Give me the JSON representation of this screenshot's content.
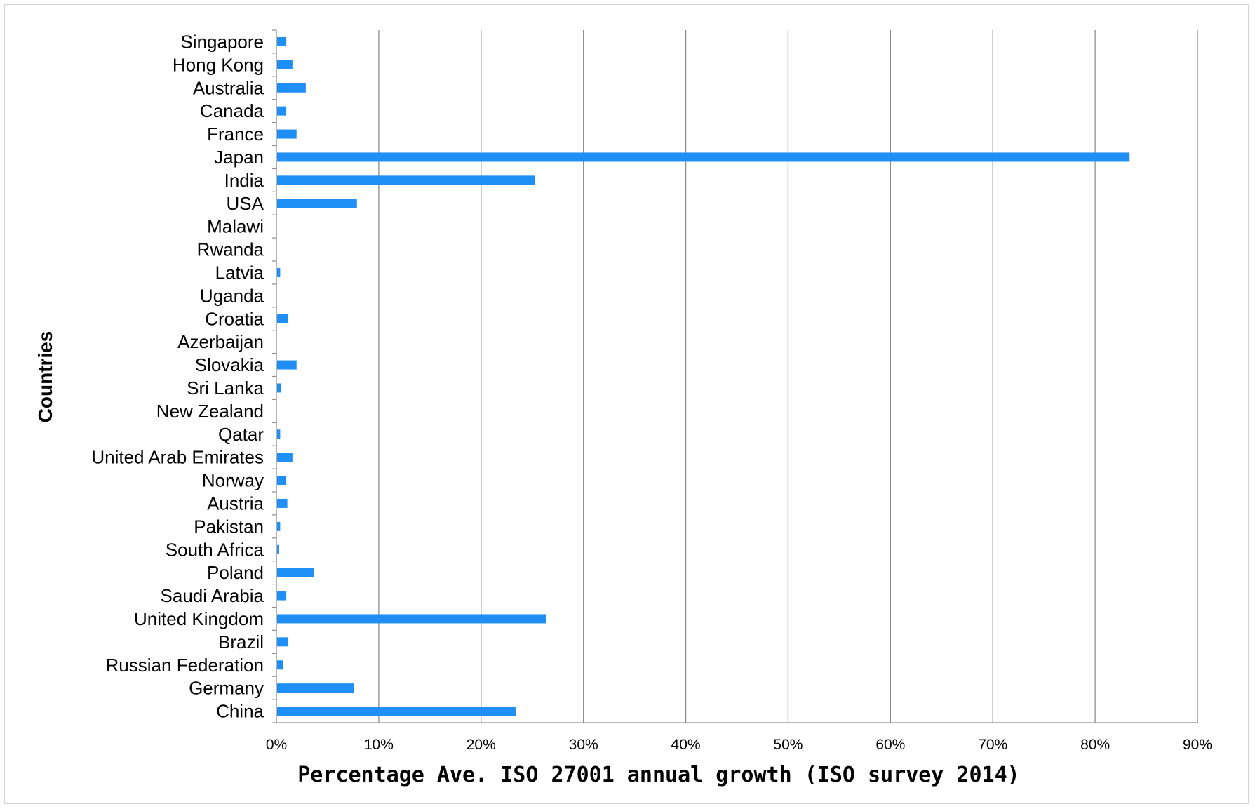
{
  "chart_data": {
    "type": "bar",
    "orientation": "horizontal",
    "xlabel": "Percentage Ave. ISO 27001 annual growth (ISO survey 2014)",
    "ylabel": "Countries",
    "xlim": [
      0,
      0.9
    ],
    "x_ticks": [
      0,
      0.1,
      0.2,
      0.3,
      0.4,
      0.5,
      0.6,
      0.7,
      0.8,
      0.9
    ],
    "x_tick_labels": [
      "0%",
      "10%",
      "20%",
      "30%",
      "40%",
      "50%",
      "60%",
      "70%",
      "80%",
      "90%"
    ],
    "grid": "vertical",
    "bar_color": "#1f8ef5",
    "categories": [
      "Singapore",
      "Hong Kong",
      "Australia",
      "Canada",
      "France",
      "Japan",
      "India",
      "USA",
      "Malawi",
      "Rwanda",
      "Latvia",
      "Uganda",
      "Croatia",
      "Azerbaijan",
      "Slovakia",
      "Sri Lanka",
      "New Zealand",
      "Qatar",
      "United Arab Emirates",
      "Norway",
      "Austria",
      "Pakistan",
      "South Africa",
      "Poland",
      "Saudi Arabia",
      "United Kingdom",
      "Brazil",
      "Russian Federation",
      "Germany",
      "China"
    ],
    "values": [
      0.009,
      0.015,
      0.028,
      0.009,
      0.019,
      0.833,
      0.252,
      0.078,
      0.0,
      0.0,
      0.003,
      0.0,
      0.011,
      0.0,
      0.019,
      0.004,
      0.0,
      0.003,
      0.015,
      0.009,
      0.01,
      0.003,
      0.002,
      0.036,
      0.009,
      0.263,
      0.011,
      0.006,
      0.075,
      0.233
    ]
  }
}
